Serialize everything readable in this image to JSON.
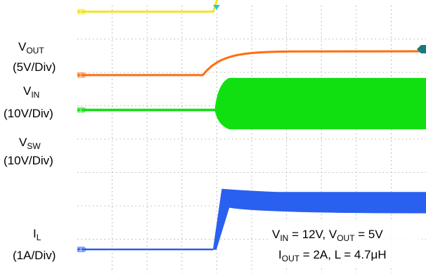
{
  "chart_data": {
    "type": "line",
    "title": "",
    "grid": true,
    "grid_divisions": {
      "x": 10,
      "y": 8
    },
    "trigger_marker_color": "#22c8d8",
    "channels": [
      {
        "id": "vout",
        "label_main": "V",
        "label_sub": "OUT",
        "scale": "(5V/Div)",
        "color": "#f2e600",
        "marker_label": "1",
        "waveform": "step",
        "before_level_div": 7.5,
        "after_level_div": 8.55,
        "step_start_div": 3.9,
        "step_end_div": 4.2
      },
      {
        "id": "vin",
        "label_main": "V",
        "label_sub": "IN",
        "scale": "(10V/Div)",
        "color": "#ff6d10",
        "marker_label": "2",
        "waveform": "ramp",
        "before_level_div": 5.5,
        "after_level_div": 6.25,
        "ramp_start_div": 3.6,
        "ramp_end_div": 6.3
      },
      {
        "id": "vsw",
        "label_main": "V",
        "label_sub": "SW",
        "scale": "(10V/Div)",
        "color": "#10e010",
        "marker_label": "3",
        "waveform": "switching",
        "before_level_div": 4.4,
        "band_top_div": 5.4,
        "band_bottom_div": 3.8,
        "switch_start_div": 3.95
      },
      {
        "id": "il",
        "label_main": "I",
        "label_sub": "L",
        "scale": "(1A/Div)",
        "color": "#2a60f0",
        "marker_label": "4",
        "waveform": "band",
        "before_level_div": 0.0,
        "band_top_div": 1.8,
        "band_bottom_div": 1.15,
        "peak_top_div": 1.9,
        "rise_start_div": 3.9,
        "rise_end_div": 4.15
      }
    ],
    "conditions": {
      "line1": {
        "vin_main": "V",
        "vin_sub": "IN",
        "vin_value": " = 12V, ",
        "vout_main": "V",
        "vout_sub": "OUT",
        "vout_value": " = 5V"
      },
      "line2": {
        "iout_main": "I",
        "iout_sub": "OUT",
        "iout_value": " = 2A, L = 4.7",
        "mu": "μ",
        "unit": "H"
      }
    }
  }
}
